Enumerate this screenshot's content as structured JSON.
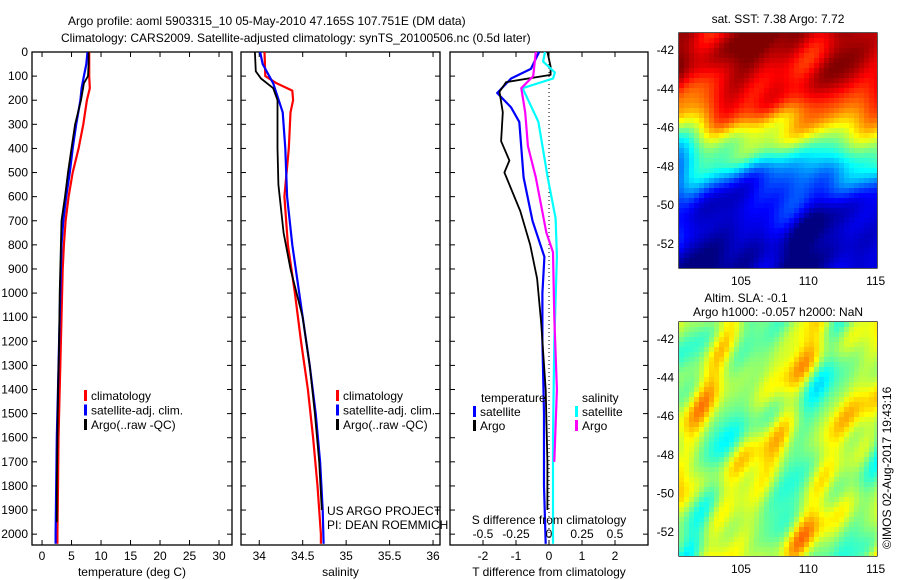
{
  "title": {
    "line1": "Argo profile: aoml 5903315_10 05-May-2010 47.165S 107.751E (DM data)",
    "line2": "Climatology: CARS2009. Satellite-adjusted climatology: synTS_20100506.nc (0.5d later)"
  },
  "annotation": {
    "project": "US ARGO PROJECT",
    "pi": "PI: DEAN ROEMMICH"
  },
  "copyright": "©IMOS 02-Aug-2017 19:43:16",
  "chart_data": [
    {
      "type": "line",
      "id": "temperature",
      "xlabel": "temperature (deg C)",
      "xlim": [
        -1.7,
        32.2
      ],
      "ylim": [
        0,
        2045
      ],
      "xticks": [
        0,
        5,
        10,
        15,
        20,
        25,
        30
      ],
      "yticks": [
        0,
        100,
        200,
        300,
        400,
        500,
        600,
        700,
        800,
        900,
        1000,
        1100,
        1200,
        1300,
        1400,
        1500,
        1600,
        1700,
        1800,
        1900,
        2000
      ],
      "legend": [
        "climatology",
        "satellite-adj. clim.",
        "Argo(..raw -QC)"
      ],
      "series": [
        {
          "name": "climatology",
          "color": "#ff0000",
          "depth": [
            0,
            50,
            100,
            150,
            200,
            300,
            400,
            500,
            600,
            700,
            800,
            900,
            1000,
            1200,
            1400,
            1600,
            1800,
            2000,
            2040
          ],
          "values": [
            8.0,
            8.0,
            8.0,
            8.1,
            7.6,
            7.0,
            6.2,
            5.2,
            4.5,
            4.0,
            3.7,
            3.5,
            3.4,
            3.2,
            3.0,
            2.8,
            2.7,
            2.6,
            2.6
          ]
        },
        {
          "name": "satellite-adj. clim.",
          "color": "#0000ff",
          "depth": [
            0,
            50,
            100,
            150,
            200,
            300,
            400,
            500,
            600,
            700,
            800,
            1000,
            1200,
            1400,
            1600,
            1800,
            2000,
            2040
          ],
          "values": [
            7.7,
            7.5,
            7.1,
            6.7,
            6.5,
            5.8,
            5.2,
            4.7,
            4.1,
            3.6,
            3.3,
            3.1,
            2.9,
            2.7,
            2.5,
            2.4,
            2.3,
            2.3
          ]
        },
        {
          "name": "Argo(..raw -QC)",
          "color": "#000000",
          "depth": [
            0,
            50,
            100,
            130,
            200,
            300,
            400,
            500,
            600,
            700,
            800,
            1000,
            1200,
            1400,
            1600,
            1800,
            1950
          ],
          "values": [
            7.9,
            7.9,
            7.8,
            7.1,
            6.6,
            5.6,
            5.0,
            4.4,
            3.9,
            3.3,
            3.2,
            3.0,
            2.9,
            2.7,
            2.6,
            2.5,
            2.5
          ]
        }
      ]
    },
    {
      "type": "line",
      "id": "salinity",
      "xlabel": "salinity",
      "xlim": [
        33.79,
        36.08
      ],
      "ylim": [
        0,
        2045
      ],
      "xticks": [
        34,
        34.5,
        35,
        35.5,
        36
      ],
      "legend": [
        "climatology",
        "satellite-adj. clim.",
        "Argo(..raw -QC)"
      ],
      "series": [
        {
          "name": "climatology",
          "color": "#ff0000",
          "depth": [
            0,
            100,
            130,
            160,
            200,
            250,
            400,
            600,
            800,
            1000,
            1200,
            1400,
            1600,
            1800,
            2000,
            2040
          ],
          "values": [
            34.06,
            34.07,
            34.2,
            34.38,
            34.39,
            34.36,
            34.34,
            34.29,
            34.33,
            34.41,
            34.48,
            34.56,
            34.62,
            34.67,
            34.71,
            34.71
          ]
        },
        {
          "name": "satellite-adj. clim.",
          "color": "#0000ff",
          "depth": [
            0,
            50,
            130,
            250,
            400,
            600,
            800,
            1100,
            1300,
            1500,
            1700,
            1900,
            2040
          ],
          "values": [
            34.01,
            34.04,
            34.16,
            34.27,
            34.3,
            34.32,
            34.38,
            34.5,
            34.58,
            34.65,
            34.7,
            34.73,
            34.74
          ]
        },
        {
          "name": "Argo(..raw -QC)",
          "color": "#000000",
          "depth": [
            0,
            80,
            110,
            150,
            200,
            400,
            550,
            750,
            900,
            1100,
            1300,
            1500,
            1700,
            1900
          ],
          "values": [
            33.95,
            33.96,
            34.02,
            34.16,
            34.21,
            34.21,
            34.22,
            34.28,
            34.36,
            34.5,
            34.58,
            34.64,
            34.69,
            34.72
          ]
        }
      ]
    },
    {
      "type": "line",
      "id": "difference",
      "xlabel": "T difference from climatology",
      "s_label": "S difference from climatology",
      "xlim": [
        -3.0,
        3.0
      ],
      "s_scale": 0.25,
      "ylim": [
        0,
        2045
      ],
      "xticks": [
        -2,
        -1,
        0,
        1,
        2
      ],
      "s_ticks": [
        -0.5,
        -0.25,
        0,
        0.25,
        0.5
      ],
      "s_tick_labels": [
        "-0.5",
        "-0.25",
        "0",
        "0.25",
        "0.5"
      ],
      "legend": {
        "temperature_header": "temperature",
        "salinity_header": "salinity",
        "satellite": "satellite",
        "argo": "Argo"
      },
      "series": [
        {
          "name": "T satellite",
          "var": "T",
          "color": "#0000ff",
          "depth": [
            0,
            70,
            110,
            170,
            230,
            290,
            520,
            700,
            850,
            1000,
            1200,
            1500,
            1800,
            2040
          ],
          "values": [
            -0.3,
            -0.55,
            -1.15,
            -1.57,
            -1.15,
            -0.9,
            -0.77,
            -0.5,
            -0.14,
            -0.2,
            -0.2,
            -0.15,
            -0.15,
            -0.1
          ]
        },
        {
          "name": "T Argo",
          "var": "T",
          "color": "#000000",
          "depth": [
            0,
            60,
            95,
            125,
            165,
            250,
            370,
            450,
            500,
            660,
            800,
            940,
            1120,
            1400,
            1700,
            1900
          ],
          "values": [
            -0.05,
            0.05,
            0.05,
            -1.3,
            -1.5,
            -1.4,
            -1.45,
            -1.2,
            -1.35,
            -0.87,
            -0.57,
            -0.36,
            -0.24,
            -0.1,
            -0.05,
            -0.05
          ]
        },
        {
          "name": "S satellite",
          "var": "S",
          "color": "#00ffff",
          "depth": [
            0,
            40,
            85,
            110,
            150,
            220,
            290,
            520,
            690,
            850,
            1200,
            1600,
            2040
          ],
          "values": [
            -0.03,
            -0.045,
            0.045,
            0.03,
            -0.2,
            -0.14,
            -0.08,
            -0.01,
            0.05,
            0.06,
            0.04,
            0.03,
            0.03
          ]
        },
        {
          "name": "S Argo",
          "var": "S",
          "color": "#ff00ff",
          "depth": [
            0,
            100,
            150,
            250,
            390,
            520,
            750,
            830,
            1100,
            1400,
            1700
          ],
          "values": [
            -0.1,
            -0.12,
            -0.21,
            -0.18,
            -0.16,
            -0.1,
            -0.02,
            0.03,
            0.04,
            0.06,
            0.04
          ]
        }
      ]
    },
    {
      "type": "heatmap",
      "id": "sst",
      "title": "sat. SST: 7.38 Argo: 7.72",
      "xlim": [
        100.4,
        115.1
      ],
      "ylim": [
        -53.24,
        -41.12
      ],
      "xticks": [
        105,
        110,
        115
      ],
      "yticks": [
        -42,
        -44,
        -46,
        -48,
        -50,
        -52
      ],
      "marker": {
        "lon": 107.751,
        "lat": -47.165
      }
    },
    {
      "type": "heatmap",
      "id": "sla",
      "title": "Altim. SLA: -0.1",
      "subtitle": "Argo h1000: -0.057 h2000: NaN",
      "xlim": [
        100.4,
        115.1
      ],
      "ylim": [
        -53.24,
        -41.12
      ],
      "xticks": [
        105,
        110,
        115
      ],
      "yticks": [
        -42,
        -44,
        -46,
        -48,
        -50,
        -52
      ],
      "marker": {
        "lon": 107.751,
        "lat": -47.165
      }
    }
  ]
}
